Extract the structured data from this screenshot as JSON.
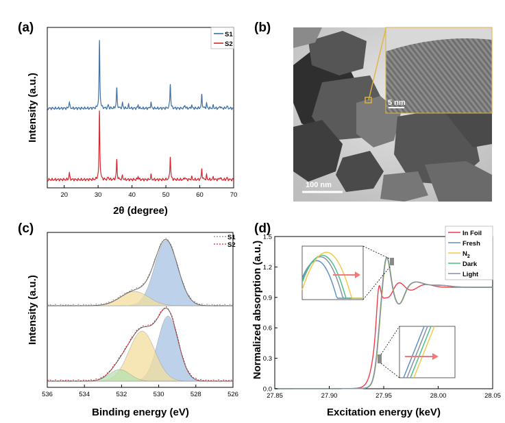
{
  "chart_data": [
    {
      "panel": "(a)",
      "type": "line",
      "xlabel": "2θ (degree)",
      "ylabel": "Intensity (a.u.)",
      "xlim": [
        15,
        70
      ],
      "xticks": [
        20,
        30,
        40,
        50,
        60,
        70
      ],
      "legend_position": "top-right",
      "series": [
        {
          "name": "S1",
          "color": "#3b6ea5",
          "peaks": [
            [
              21.5,
              0.1
            ],
            [
              30.4,
              1.0
            ],
            [
              33.0,
              0.05
            ],
            [
              35.5,
              0.3
            ],
            [
              37.2,
              0.08
            ],
            [
              39.0,
              0.05
            ],
            [
              41.8,
              0.05
            ],
            [
              45.6,
              0.09
            ],
            [
              51.3,
              0.37
            ],
            [
              55.6,
              0.05
            ],
            [
              57.6,
              0.05
            ],
            [
              60.6,
              0.2
            ],
            [
              62.0,
              0.07
            ],
            [
              64.0,
              0.04
            ],
            [
              66.0,
              0.04
            ],
            [
              68.0,
              0.04
            ]
          ]
        },
        {
          "name": "S2",
          "color": "#d9232a",
          "peaks": [
            [
              21.5,
              0.1
            ],
            [
              30.4,
              1.0
            ],
            [
              33.0,
              0.04
            ],
            [
              35.5,
              0.29
            ],
            [
              37.2,
              0.06
            ],
            [
              41.8,
              0.05
            ],
            [
              45.6,
              0.07
            ],
            [
              51.3,
              0.35
            ],
            [
              55.6,
              0.04
            ],
            [
              57.6,
              0.04
            ],
            [
              60.6,
              0.16
            ],
            [
              62.0,
              0.06
            ],
            [
              64.0,
              0.04
            ],
            [
              66.0,
              0.04
            ],
            [
              68.0,
              0.03
            ]
          ]
        }
      ]
    },
    {
      "panel": "(b)",
      "type": "image",
      "scale_bar_main": "100 nm",
      "scale_bar_inset": "5 nm"
    },
    {
      "panel": "(c)",
      "type": "area",
      "xlabel": "Binding energy (eV)",
      "ylabel": "Intensity (a.u.)",
      "xlim": [
        536,
        526
      ],
      "xticks": [
        536,
        534,
        532,
        530,
        528,
        526
      ],
      "legend_position": "top-right",
      "legend": [
        {
          "name": "S1",
          "color": "#888888"
        },
        {
          "name": "S2",
          "color": "#d9232a"
        }
      ],
      "series": [
        {
          "name": "S1",
          "components": [
            {
              "center": 529.6,
              "height": 1.0,
              "sigma": 0.62,
              "color": "#a7c2e3"
            },
            {
              "center": 531.3,
              "height": 0.22,
              "sigma": 0.75,
              "color": "#f3dd9c"
            }
          ]
        },
        {
          "name": "S2",
          "components": [
            {
              "center": 529.5,
              "height": 0.95,
              "sigma": 0.55,
              "color": "#a7c2e3"
            },
            {
              "center": 530.9,
              "height": 0.73,
              "sigma": 0.7,
              "color": "#f3dd9c"
            },
            {
              "center": 532.1,
              "height": 0.17,
              "sigma": 0.55,
              "color": "#b7e0b0"
            }
          ]
        }
      ]
    },
    {
      "panel": "(d)",
      "type": "line",
      "xlabel": "Excitation energy (keV)",
      "ylabel": "Normalized absorption (a.u.)",
      "xlim": [
        27.85,
        28.05
      ],
      "ylim": [
        0.0,
        1.5
      ],
      "xticks": [
        "27.85",
        "27.90",
        "27.95",
        "28.00",
        "28.05"
      ],
      "yticks": [
        "0.0",
        "0.3",
        "0.6",
        "0.9",
        "1.2",
        "1.5"
      ],
      "legend_position": "top-right",
      "series": [
        {
          "name": "In Foil",
          "color": "#ef3b4a"
        },
        {
          "name": "Fresh",
          "color": "#5f8fc4"
        },
        {
          "name": "N2",
          "label": "N",
          "subscript": "2",
          "color": "#f2c94c"
        },
        {
          "name": "Dark",
          "color": "#4cc08a"
        },
        {
          "name": "Light",
          "color": "#8a8fa0"
        }
      ],
      "edge_e0": {
        "In Foil": 27.9425,
        "Fresh": 27.9451,
        "N2": 27.9454,
        "Dark": 27.9452,
        "Light": 27.945
      },
      "insets": [
        "white-line peak zoom",
        "absorption edge zoom"
      ]
    }
  ]
}
